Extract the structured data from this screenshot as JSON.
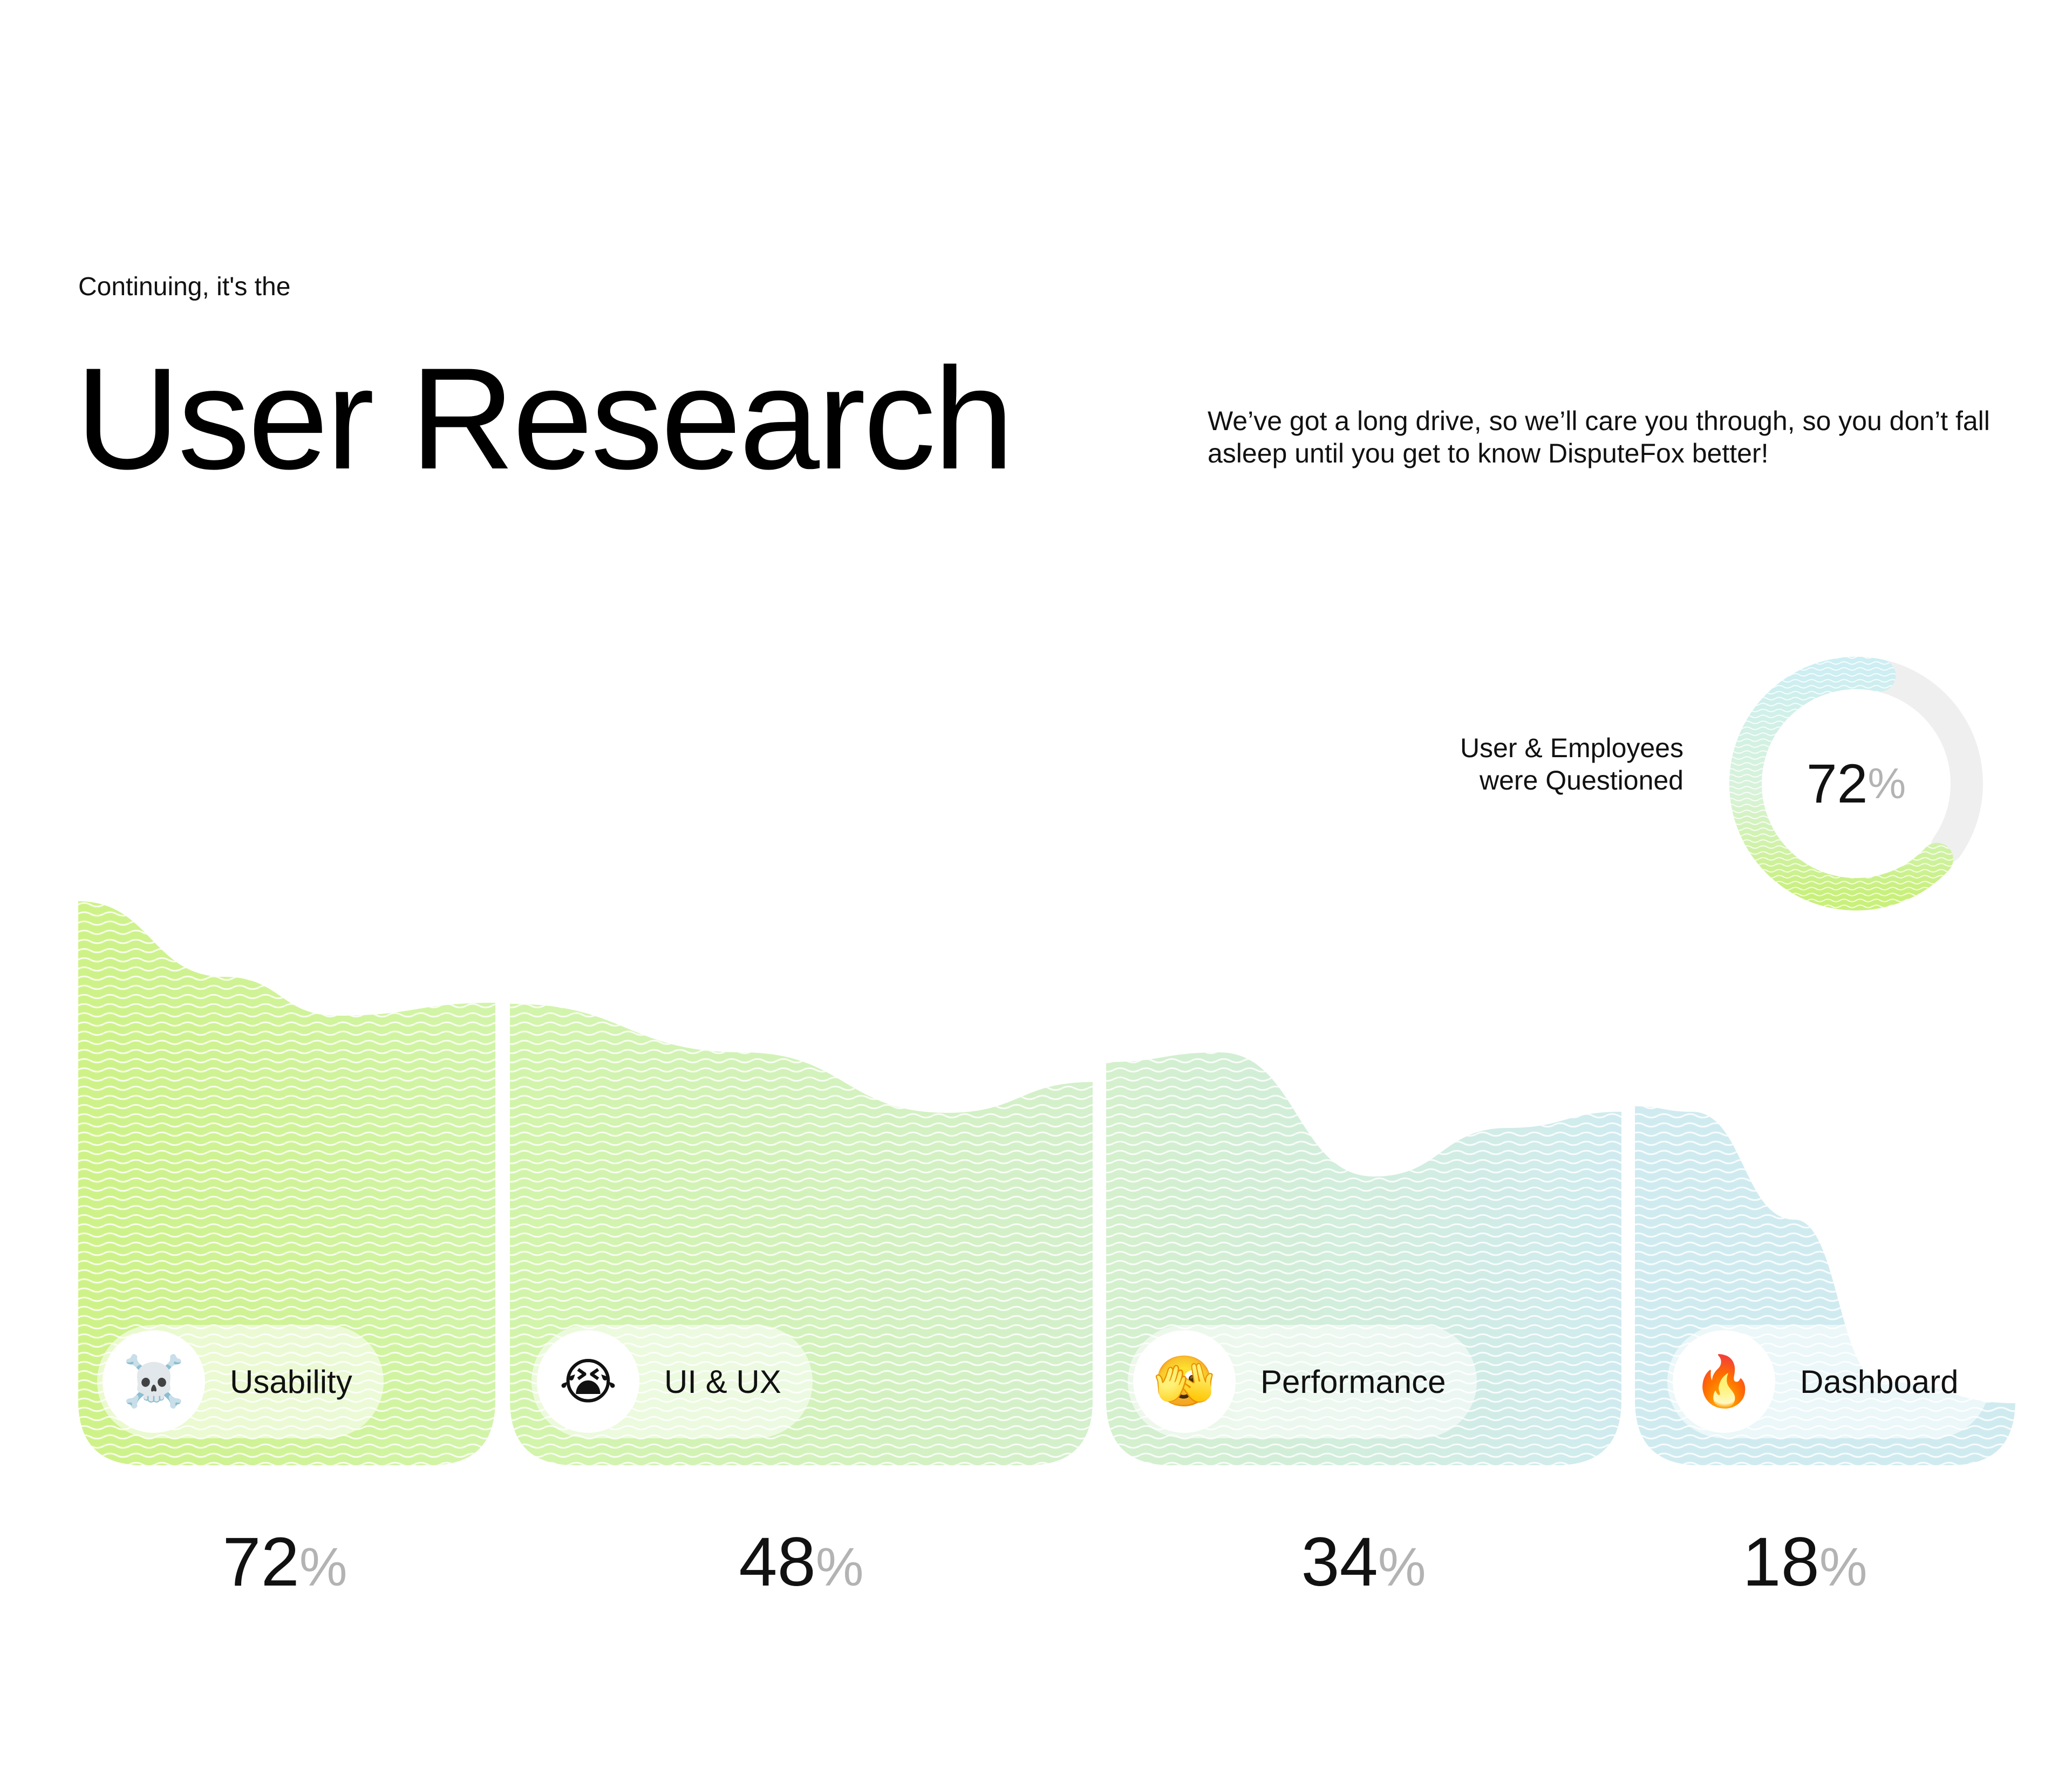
{
  "header": {
    "eyebrow": "Continuing, it's the",
    "title": "User Research",
    "intro": "We’ve got a long drive, so we’ll care you through, so you don’t fall asleep until you get to know DisputeFox better!"
  },
  "donut": {
    "label_line1": "User & Employees",
    "label_line2": "were Questioned",
    "value": "72",
    "unit": "%",
    "fraction": 0.72
  },
  "chart_data": {
    "type": "bar",
    "categories": [
      "Usability",
      "UI & UX",
      "Performance",
      "Dashboard"
    ],
    "values": [
      72,
      48,
      34,
      18
    ],
    "unit": "%",
    "icons": [
      "skull-and-crossbones",
      "crying-face",
      "face-with-peeking-eye",
      "fire"
    ],
    "emojis": [
      "☠️",
      "😭",
      "🫣",
      "🔥"
    ],
    "colors": [
      "#c8f07a",
      "#cdf3a0",
      "#cfeec7",
      "#cbe9ee"
    ],
    "title": "",
    "xlabel": "",
    "ylabel": ""
  }
}
